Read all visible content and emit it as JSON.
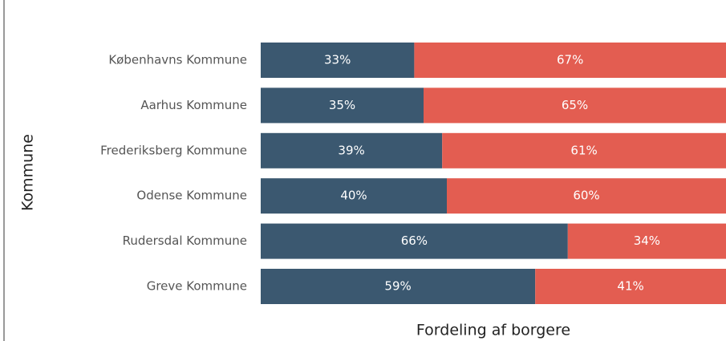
{
  "chart_data": {
    "type": "bar",
    "orientation": "horizontal",
    "stacked": true,
    "xlabel": "Fordeling af borgere",
    "ylabel": "Kommune",
    "categories": [
      "Københavns Kommune",
      "Aarhus Kommune",
      "Frederiksberg Kommune",
      "Odense Kommune",
      "Rudersdal Kommune",
      "Greve Kommune"
    ],
    "xlim": [
      0,
      100
    ],
    "series": [
      {
        "color": "#3b5870",
        "values": [
          33,
          35,
          39,
          40,
          66,
          59
        ],
        "value_labels": [
          "33%",
          "35%",
          "39%",
          "40%",
          "66%",
          "59%"
        ]
      },
      {
        "color": "#e35d51",
        "values": [
          67,
          65,
          61,
          60,
          34,
          41
        ],
        "value_labels": [
          "67%",
          "65%",
          "61%",
          "60%",
          "34%",
          "41%"
        ]
      }
    ]
  }
}
